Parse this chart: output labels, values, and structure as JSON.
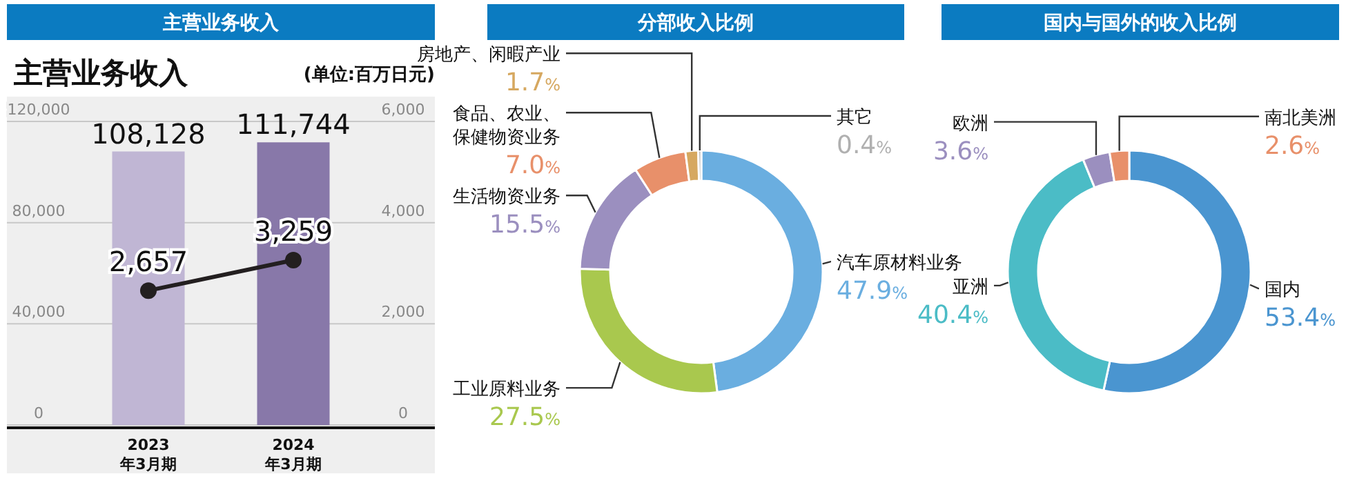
{
  "chart_data": [
    {
      "type": "bar",
      "title": "主营业务收入",
      "subtitle": "主营业务收入",
      "annotations": [
        "(单位:百万日元)"
      ],
      "categories": [
        "2023年3月期",
        "2024年3月期"
      ],
      "series": [
        {
          "type": "bar",
          "colors": [
            "#c0b6d4",
            "#8878a9"
          ],
          "values": [
            108128,
            111744
          ],
          "value_labels": [
            "108,128",
            "111,744"
          ]
        },
        {
          "type": "line",
          "axis": "y2",
          "color": "#231f20",
          "values": [
            2657,
            3259
          ],
          "value_labels": [
            "2,657",
            "3,259"
          ]
        }
      ],
      "ylim": [
        0,
        120000
      ],
      "yticks": [
        0,
        {
          "value": 40000,
          "label": "40,000"
        },
        {
          "value": 80000,
          "label": "80,000"
        },
        {
          "value": 120000,
          "label": "120,000"
        }
      ],
      "y2lim": [
        0,
        6000
      ],
      "y2ticks": [
        0,
        {
          "value": 2000,
          "label": "2,000"
        },
        {
          "value": 4000,
          "label": "4,000"
        },
        {
          "value": 6000,
          "label": "6,000"
        }
      ],
      "grid": "y",
      "marker": "circle"
    },
    {
      "type": "donut",
      "title": "分部收入比例",
      "categories": [
        "汽车原材料业务",
        "工业原料业务",
        "生活物资业务",
        "食品、农业、保健物资业务",
        "房地产、闲暇产业",
        "其它"
      ],
      "values": [
        47.9,
        27.5,
        15.5,
        7.0,
        1.7,
        0.4
      ],
      "colors": [
        "#6aaee0",
        "#a9c84e",
        "#9b8fbf",
        "#e8906a",
        "#d6a860",
        "#b0b0b0"
      ],
      "value_labels": [
        "47.9%",
        "27.5%",
        "15.5%",
        "7.0%",
        "1.7%",
        "0.4%"
      ]
    },
    {
      "type": "donut",
      "title": "国内与国外的收入比例",
      "categories": [
        "国内",
        "亚洲",
        "欧洲",
        "南北美洲"
      ],
      "values": [
        53.4,
        40.4,
        3.6,
        2.6
      ],
      "colors": [
        "#4a95d0",
        "#4bbcc6",
        "#9b8fbf",
        "#e8906a"
      ],
      "value_labels": [
        "53.4%",
        "40.4%",
        "3.6%",
        "2.6%"
      ]
    }
  ]
}
